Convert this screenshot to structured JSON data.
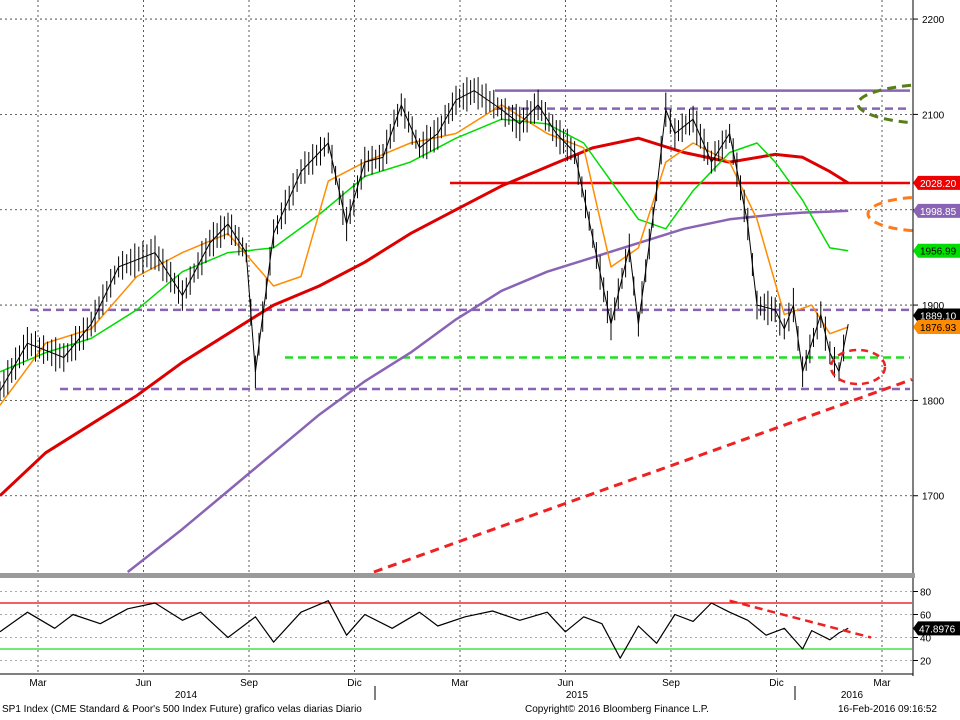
{
  "footer": {
    "left": "SP1 Index (CME Standard & Poor's 500 Index Future) grafico velas diarias  Diario",
    "center": "Copyright© 2016 Bloomberg Finance L.P.",
    "right": "16-Feb-2016 09:16:52"
  },
  "colors": {
    "price": "#000000",
    "ma_short": "#00dd00",
    "ma_fast": "#ff8c00",
    "ma100": "#dd0000",
    "ma200": "#8a64b4",
    "resistance": "#8a64b4",
    "support": "#22dd22",
    "trendline": "#ee2222",
    "ellipse_green": "#5a7d1a",
    "ellipse_orange": "#ff7a1a",
    "ellipse_red": "#ee2222"
  },
  "chart_data": [
    {
      "type": "line",
      "title": "",
      "y_ticks": [
        "2200",
        "2100",
        "2000",
        "1900",
        "1800",
        "1700"
      ],
      "ylim": [
        1620,
        2220
      ],
      "x_month_labels": [
        "Mar",
        "Jun",
        "Sep",
        "Dic",
        "Mar",
        "Jun",
        "Sep",
        "Dic",
        "Mar"
      ],
      "x_year_labels": [
        "2014",
        "2015",
        "2016"
      ],
      "grid": true,
      "value_tags": [
        {
          "label": "2028.20",
          "value": 2028.2,
          "bg": "#ee0000",
          "fg": "#ffffff"
        },
        {
          "label": "1998.85",
          "value": 1998.85,
          "bg": "#8a64b4",
          "fg": "#ffffff"
        },
        {
          "label": "1956.99",
          "value": 1956.99,
          "bg": "#00dd00",
          "fg": "#000000"
        },
        {
          "label": "1889.10",
          "value": 1889.1,
          "bg": "#000000",
          "fg": "#ffffff"
        },
        {
          "label": "1876.93",
          "value": 1876.93,
          "bg": "#ff8c00",
          "fg": "#000000"
        }
      ],
      "horizontal_levels": [
        {
          "name": "",
          "value": 2125,
          "style": "solid",
          "color": "#8a64b4"
        },
        {
          "name": "",
          "value": 2106,
          "style": "dashed",
          "color": "#8a64b4"
        },
        {
          "name": "",
          "value": 2028,
          "style": "solid",
          "color": "#ee0000"
        },
        {
          "name": "",
          "value": 1895,
          "style": "dashed",
          "color": "#8a64b4"
        },
        {
          "name": "",
          "value": 1845,
          "style": "dashed",
          "color": "#22dd22"
        },
        {
          "name": "",
          "value": 1812,
          "style": "dashed",
          "color": "#8a64b4"
        }
      ],
      "series": [
        {
          "role": "price",
          "x": [
            0,
            0.03,
            0.07,
            0.1,
            0.13,
            0.17,
            0.2,
            0.23,
            0.25,
            0.27,
            0.28,
            0.3,
            0.33,
            0.36,
            0.38,
            0.4,
            0.42,
            0.44,
            0.46,
            0.48,
            0.5,
            0.52,
            0.55,
            0.57,
            0.59,
            0.61,
            0.63,
            0.65,
            0.67,
            0.69,
            0.7,
            0.72,
            0.73,
            0.74,
            0.76,
            0.78,
            0.8,
            0.82,
            0.83,
            0.85,
            0.86,
            0.87,
            0.88,
            0.9,
            0.91,
            0.92,
            0.93
          ],
          "values": [
            1810,
            1860,
            1845,
            1880,
            1940,
            1955,
            1910,
            1965,
            1985,
            1955,
            1830,
            1975,
            2040,
            2070,
            1985,
            2050,
            2055,
            2110,
            2065,
            2080,
            2115,
            2125,
            2105,
            2090,
            2110,
            2080,
            2060,
            1970,
            1880,
            1960,
            1880,
            2020,
            2105,
            2080,
            2095,
            2050,
            2080,
            1985,
            1900,
            1895,
            1875,
            1900,
            1830,
            1890,
            1850,
            1830,
            1880
          ]
        },
        {
          "role": "ma_fast",
          "x": [
            0,
            0.05,
            0.1,
            0.15,
            0.2,
            0.25,
            0.3,
            0.33,
            0.36,
            0.4,
            0.45,
            0.5,
            0.55,
            0.6,
            0.64,
            0.67,
            0.7,
            0.73,
            0.76,
            0.8,
            0.83,
            0.86,
            0.89,
            0.91,
            0.93
          ],
          "values": [
            1795,
            1860,
            1875,
            1930,
            1955,
            1975,
            1920,
            1930,
            2030,
            2050,
            2070,
            2080,
            2110,
            2080,
            2065,
            1940,
            1960,
            2050,
            2070,
            2050,
            1990,
            1890,
            1900,
            1870,
            1877
          ]
        },
        {
          "role": "ma_short",
          "x": [
            0,
            0.05,
            0.1,
            0.15,
            0.2,
            0.25,
            0.3,
            0.35,
            0.4,
            0.45,
            0.5,
            0.55,
            0.6,
            0.64,
            0.67,
            0.7,
            0.73,
            0.76,
            0.8,
            0.83,
            0.85,
            0.88,
            0.91,
            0.93
          ],
          "values": [
            1830,
            1850,
            1865,
            1895,
            1935,
            1955,
            1960,
            1995,
            2035,
            2050,
            2075,
            2095,
            2090,
            2070,
            2030,
            1990,
            1980,
            2020,
            2060,
            2070,
            2050,
            2010,
            1960,
            1957
          ]
        },
        {
          "role": "ma100",
          "x": [
            0,
            0.05,
            0.1,
            0.15,
            0.2,
            0.25,
            0.3,
            0.35,
            0.4,
            0.45,
            0.5,
            0.55,
            0.6,
            0.65,
            0.7,
            0.75,
            0.8,
            0.85,
            0.88,
            0.91,
            0.93
          ],
          "values": [
            1700,
            1745,
            1775,
            1805,
            1840,
            1870,
            1900,
            1920,
            1945,
            1975,
            2000,
            2025,
            2045,
            2065,
            2075,
            2060,
            2050,
            2058,
            2055,
            2040,
            2028
          ]
        },
        {
          "role": "ma200",
          "x": [
            0.14,
            0.2,
            0.25,
            0.3,
            0.35,
            0.4,
            0.45,
            0.5,
            0.55,
            0.6,
            0.65,
            0.7,
            0.75,
            0.8,
            0.85,
            0.88,
            0.91,
            0.93
          ],
          "values": [
            1620,
            1665,
            1705,
            1745,
            1785,
            1820,
            1850,
            1885,
            1915,
            1935,
            1950,
            1965,
            1980,
            1990,
            1995,
            1997,
            1998,
            1999
          ]
        }
      ],
      "trendline": {
        "x": [
          0.41,
          1.0
        ],
        "values": [
          1620,
          1822
        ]
      }
    },
    {
      "type": "line",
      "title": "",
      "ylim": [
        10,
        90
      ],
      "y_ticks": [
        "80",
        "60",
        "40",
        "20"
      ],
      "value_tag": {
        "label": "47.8976",
        "value": 47.8976,
        "bg": "#000000",
        "fg": "#ffffff"
      },
      "guides": [
        {
          "value": 70,
          "color": "#ee0000"
        },
        {
          "value": 30,
          "color": "#22dd22"
        }
      ],
      "series": [
        {
          "role": "rsi",
          "x": [
            0,
            0.03,
            0.06,
            0.08,
            0.11,
            0.14,
            0.17,
            0.2,
            0.22,
            0.25,
            0.28,
            0.3,
            0.33,
            0.36,
            0.38,
            0.4,
            0.43,
            0.46,
            0.48,
            0.51,
            0.54,
            0.57,
            0.6,
            0.62,
            0.64,
            0.66,
            0.68,
            0.7,
            0.72,
            0.74,
            0.76,
            0.78,
            0.8,
            0.82,
            0.84,
            0.86,
            0.88,
            0.89,
            0.91,
            0.92,
            0.93
          ],
          "values": [
            45,
            62,
            48,
            60,
            52,
            65,
            70,
            55,
            62,
            40,
            58,
            36,
            62,
            72,
            42,
            60,
            48,
            62,
            50,
            58,
            63,
            55,
            62,
            45,
            58,
            52,
            22,
            50,
            35,
            60,
            54,
            70,
            62,
            55,
            42,
            48,
            30,
            46,
            38,
            44,
            48
          ]
        }
      ],
      "trendline": {
        "x": [
          0.8,
          0.955
        ],
        "values": [
          72,
          40
        ]
      }
    }
  ]
}
